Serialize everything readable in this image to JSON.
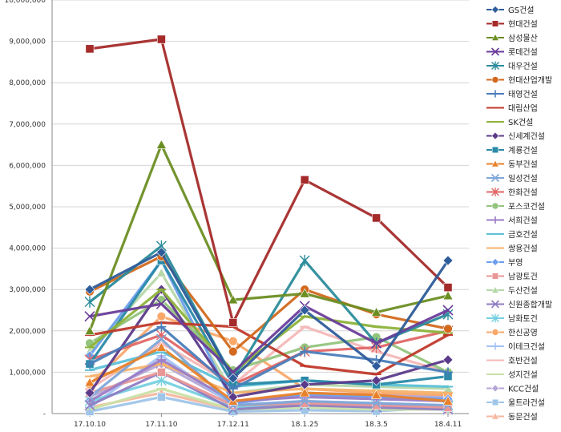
{
  "chart_data": {
    "type": "line",
    "title": "",
    "xlabel": "",
    "ylabel": "",
    "categories": [
      "17.10.10",
      "17.11.10",
      "17.12.11",
      "18.1.25",
      "18.3.5",
      "18.4.11"
    ],
    "yticks": [
      "-",
      "1,000,000",
      "2,000,000",
      "3,000,000",
      "4,000,000",
      "5,000,000",
      "6,000,000",
      "7,000,000",
      "8,000,000",
      "9,000,000",
      "10,000,000"
    ],
    "ylim": [
      0,
      10000000
    ],
    "grid": true,
    "legend_position": "right",
    "series": [
      {
        "name": "GS건설",
        "color": "#2E5C9A",
        "marker": "diamond",
        "values": [
          3000000,
          3900000,
          850000,
          2500000,
          1150000,
          3700000
        ]
      },
      {
        "name": "현대건설",
        "color": "#A52A2A",
        "marker": "square",
        "values": [
          8820000,
          9050000,
          2200000,
          5650000,
          4730000,
          3050000
        ]
      },
      {
        "name": "삼성물산",
        "color": "#6B8E23",
        "marker": "triangle",
        "values": [
          2000000,
          6500000,
          2750000,
          2900000,
          2450000,
          2850000
        ]
      },
      {
        "name": "롯데건설",
        "color": "#6A3D9A",
        "marker": "x",
        "values": [
          2350000,
          2650000,
          1000000,
          2600000,
          1700000,
          2500000
        ]
      },
      {
        "name": "대우건설",
        "color": "#2B8C9B",
        "marker": "star",
        "values": [
          2700000,
          4050000,
          850000,
          3700000,
          1700000,
          2400000
        ]
      },
      {
        "name": "현대산업개발",
        "color": "#D2691E",
        "marker": "circle",
        "values": [
          2950000,
          3800000,
          1500000,
          3000000,
          2400000,
          2050000
        ]
      },
      {
        "name": "태영건설",
        "color": "#4A7EBB",
        "marker": "plus",
        "values": [
          1200000,
          2100000,
          600000,
          1500000,
          1300000,
          1000000
        ]
      },
      {
        "name": "대림산업",
        "color": "#C0392B",
        "marker": "dash",
        "values": [
          1900000,
          2200000,
          2100000,
          1150000,
          950000,
          1900000
        ]
      },
      {
        "name": "SK건설",
        "color": "#8DB33A",
        "marker": "dash",
        "values": [
          1600000,
          3000000,
          1000000,
          2350000,
          2100000,
          1950000
        ]
      },
      {
        "name": "신세계건설",
        "color": "#5B3A8A",
        "marker": "diamond",
        "values": [
          500000,
          3000000,
          400000,
          700000,
          800000,
          1300000
        ]
      },
      {
        "name": "계룡건설",
        "color": "#2A8AA8",
        "marker": "square",
        "values": [
          1200000,
          3700000,
          700000,
          800000,
          700000,
          900000
        ]
      },
      {
        "name": "동부건설",
        "color": "#E8822A",
        "marker": "triangle",
        "values": [
          750000,
          1600000,
          300000,
          500000,
          450000,
          300000
        ]
      },
      {
        "name": "일성건설",
        "color": "#7FA7D9",
        "marker": "x",
        "values": [
          400000,
          1800000,
          200000,
          300000,
          250000,
          200000
        ]
      },
      {
        "name": "한화건설",
        "color": "#E06666",
        "marker": "star",
        "values": [
          1300000,
          1900000,
          700000,
          1500000,
          1600000,
          2000000
        ]
      },
      {
        "name": "포스코건설",
        "color": "#93C47D",
        "marker": "circle",
        "values": [
          1700000,
          2750000,
          1050000,
          1600000,
          1850000,
          1000000
        ]
      },
      {
        "name": "서희건설",
        "color": "#9B7CC4",
        "marker": "plus",
        "values": [
          300000,
          1300000,
          300000,
          400000,
          350000,
          300000
        ]
      },
      {
        "name": "금호건설",
        "color": "#5CC1D6",
        "marker": "dash",
        "values": [
          1050000,
          1500000,
          650000,
          800000,
          700000,
          650000
        ]
      },
      {
        "name": "쌍용건설",
        "color": "#F6B26B",
        "marker": "dash",
        "values": [
          900000,
          1200000,
          500000,
          600000,
          550000,
          500000
        ]
      },
      {
        "name": "부영",
        "color": "#6D9EEB",
        "marker": "diamond",
        "values": [
          1400000,
          3700000,
          250000,
          450000,
          400000,
          350000
        ]
      },
      {
        "name": "남광토건",
        "color": "#E99696",
        "marker": "square",
        "values": [
          500000,
          1000000,
          200000,
          250000,
          200000,
          150000
        ]
      },
      {
        "name": "두산건설",
        "color": "#B6D7A8",
        "marker": "triangle",
        "values": [
          1500000,
          3400000,
          500000,
          700000,
          650000,
          600000
        ]
      },
      {
        "name": "신원종합개발",
        "color": "#8E7CC3",
        "marker": "x",
        "values": [
          200000,
          1000000,
          100000,
          200000,
          150000,
          100000
        ]
      },
      {
        "name": "남화토건",
        "color": "#76D0E0",
        "marker": "star",
        "values": [
          300000,
          800000,
          150000,
          250000,
          200000,
          150000
        ]
      },
      {
        "name": "한신공영",
        "color": "#F9A86A",
        "marker": "circle",
        "values": [
          700000,
          2350000,
          1750000,
          600000,
          500000,
          450000
        ]
      },
      {
        "name": "이테크건설",
        "color": "#A4C2F4",
        "marker": "plus",
        "values": [
          150000,
          1400000,
          200000,
          300000,
          250000,
          200000
        ]
      },
      {
        "name": "호반건설",
        "color": "#F4B8B8",
        "marker": "dash",
        "values": [
          600000,
          1700000,
          700000,
          2100000,
          1500000,
          1000000
        ]
      },
      {
        "name": "성지건설",
        "color": "#C9E0A5",
        "marker": "dash",
        "values": [
          100000,
          600000,
          100000,
          150000,
          100000,
          100000
        ]
      },
      {
        "name": "KCC건설",
        "color": "#B4A7D6",
        "marker": "diamond",
        "values": [
          400000,
          1200000,
          250000,
          500000,
          450000,
          400000
        ]
      },
      {
        "name": "울트라건설",
        "color": "#9FC5E8",
        "marker": "square",
        "values": [
          50000,
          400000,
          50000,
          80000,
          60000,
          150000
        ]
      },
      {
        "name": "동문건설",
        "color": "#F5B7A0",
        "marker": "triangle",
        "values": [
          150000,
          500000,
          100000,
          200000,
          200000,
          100000
        ]
      }
    ]
  }
}
